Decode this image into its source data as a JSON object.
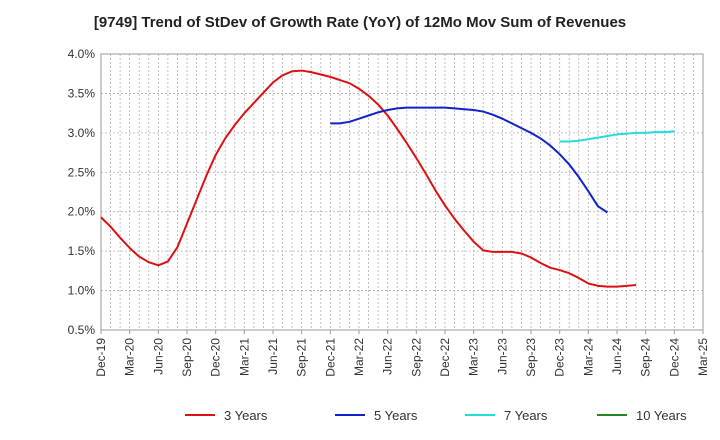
{
  "chart_data": {
    "type": "line",
    "title": "[9749]  Trend of StDev of Growth Rate (YoY) of 12Mo Mov Sum of Revenues",
    "xlabel": "",
    "ylabel": "",
    "ylim": [
      0.5,
      4.0
    ],
    "yticks": [
      0.5,
      1.0,
      1.5,
      2.0,
      2.5,
      3.0,
      3.5,
      4.0
    ],
    "ytick_labels": [
      "0.5%",
      "1.0%",
      "1.5%",
      "2.0%",
      "2.5%",
      "3.0%",
      "3.5%",
      "4.0%"
    ],
    "x_tick_labels": [
      "Dec-19",
      "Mar-20",
      "Jun-20",
      "Sep-20",
      "Dec-20",
      "Mar-21",
      "Jun-21",
      "Sep-21",
      "Dec-21",
      "Mar-22",
      "Jun-22",
      "Sep-22",
      "Dec-22",
      "Mar-23",
      "Jun-23",
      "Sep-23",
      "Dec-23",
      "Mar-24",
      "Jun-24",
      "Sep-24",
      "Dec-24",
      "Mar-25"
    ],
    "x_months_total": 63,
    "grid": true,
    "legend_position": "bottom",
    "series": [
      {
        "name": "3 Years",
        "color": "#dd1111",
        "start_month": 0,
        "values": [
          1.93,
          1.81,
          1.67,
          1.54,
          1.43,
          1.36,
          1.32,
          1.37,
          1.55,
          1.85,
          2.15,
          2.45,
          2.72,
          2.93,
          3.1,
          3.25,
          3.38,
          3.51,
          3.64,
          3.73,
          3.78,
          3.79,
          3.77,
          3.74,
          3.71,
          3.67,
          3.63,
          3.56,
          3.47,
          3.36,
          3.22,
          3.05,
          2.87,
          2.68,
          2.48,
          2.27,
          2.08,
          1.91,
          1.76,
          1.62,
          1.51,
          1.49,
          1.49,
          1.49,
          1.47,
          1.42,
          1.35,
          1.29,
          1.26,
          1.22,
          1.16,
          1.09,
          1.06,
          1.05,
          1.05,
          1.06,
          1.07
        ]
      },
      {
        "name": "5 Years",
        "color": "#1122cc",
        "start_month": 24,
        "values": [
          3.12,
          3.12,
          3.14,
          3.18,
          3.22,
          3.26,
          3.29,
          3.31,
          3.32,
          3.32,
          3.32,
          3.32,
          3.32,
          3.31,
          3.3,
          3.29,
          3.27,
          3.23,
          3.18,
          3.12,
          3.06,
          3.0,
          2.93,
          2.84,
          2.73,
          2.6,
          2.44,
          2.26,
          2.07,
          1.99
        ]
      },
      {
        "name": "7 Years",
        "color": "#22dddd",
        "start_month": 48,
        "values": [
          2.89,
          2.89,
          2.9,
          2.92,
          2.94,
          2.96,
          2.98,
          2.99,
          3.0,
          3.0,
          3.01,
          3.01,
          3.02
        ]
      },
      {
        "name": "10 Years",
        "color": "#228822",
        "start_month": 0,
        "values": []
      }
    ]
  }
}
